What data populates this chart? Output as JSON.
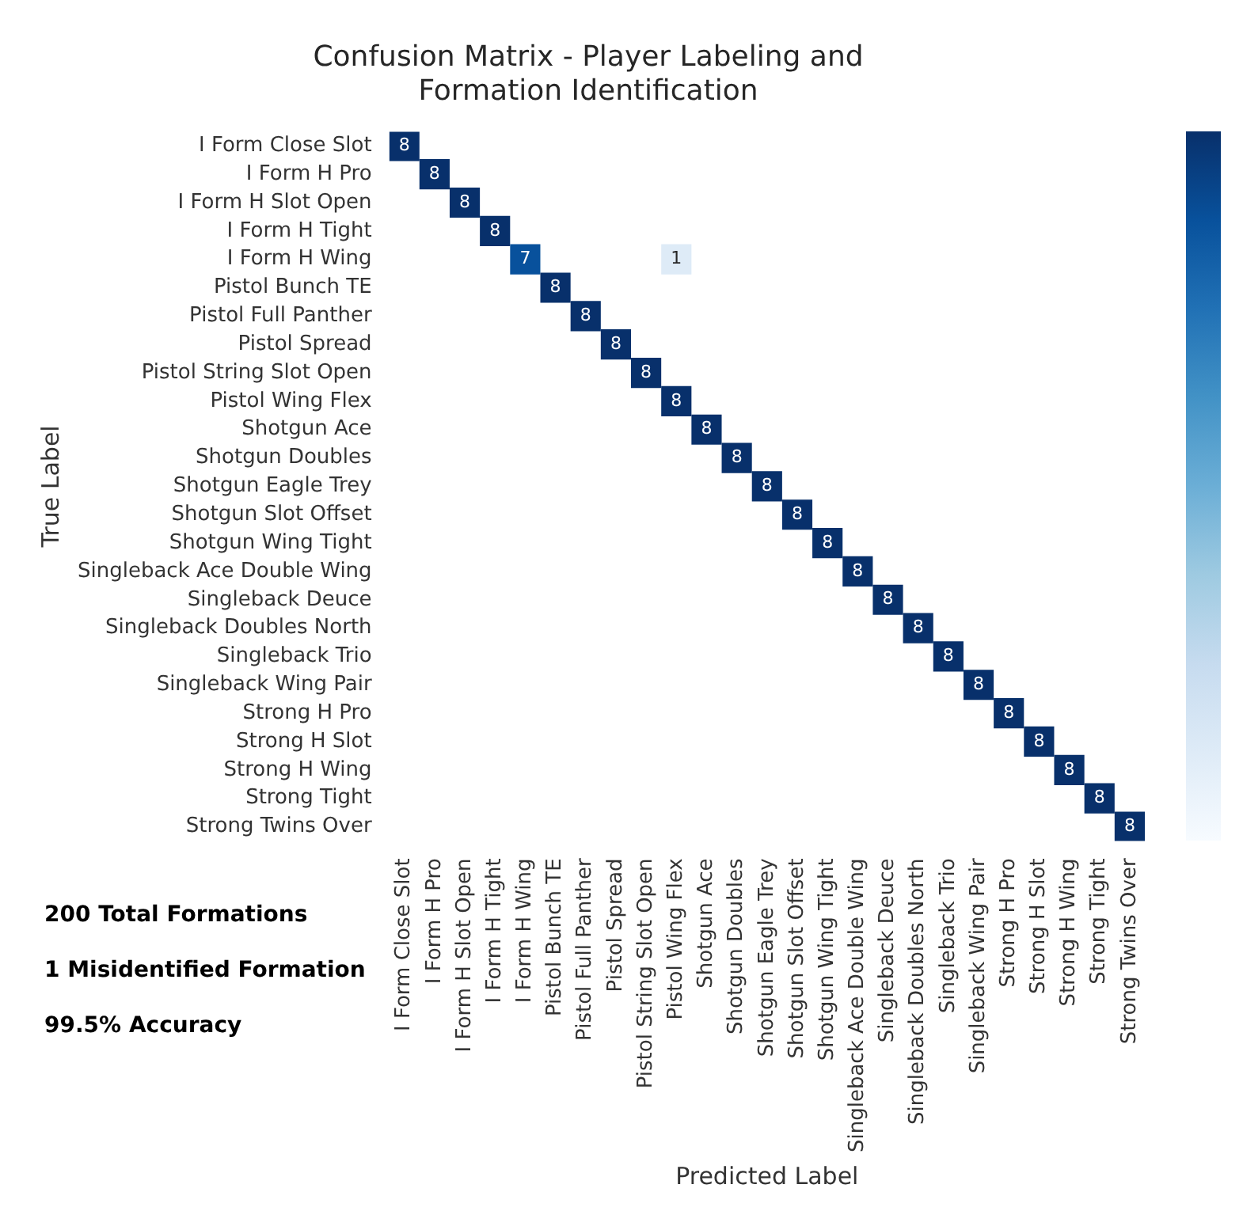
{
  "chart_data": {
    "type": "heatmap",
    "title": "Confusion Matrix - Player Labeling and Formation Identification",
    "xlabel": "Predicted Label",
    "ylabel": "True Label",
    "categories": [
      "I Form Close Slot",
      "I Form H Pro",
      "I Form H Slot Open",
      "I Form H Tight",
      "I Form H Wing",
      "Pistol Bunch TE",
      "Pistol Full Panther",
      "Pistol Spread",
      "Pistol String Slot Open",
      "Pistol Wing Flex",
      "Shotgun Ace",
      "Shotgun Doubles",
      "Shotgun Eagle Trey",
      "Shotgun Slot Offset",
      "Shotgun Wing Tight",
      "Singleback Ace Double Wing",
      "Singleback Deuce",
      "Singleback Doubles North",
      "Singleback Trio",
      "Singleback Wing Pair",
      "Strong H Pro",
      "Strong H Slot",
      "Strong H Wing",
      "Strong Tight",
      "Strong Twins Over"
    ],
    "y_categories": [
      "I Form Close Slot",
      "I Form H Pro",
      "I Form H Slot Open",
      "I Form H Tight",
      "I Form H Wing",
      "Pistol Bunch TE",
      "Pistol Full Panther",
      "Pistol Spread",
      "Pistol String Slot Open",
      "Pistol Wing Flex",
      "Shotgun Ace",
      "Shotgun Doubles",
      "Shotgun Eagle Trey",
      "Shotgun Slot Offset",
      "Shotgun Wing Tight",
      "Singleback Ace Double Wing",
      "Singleback Deuce",
      "Singleback Doubles North",
      "Singleback Trio",
      "Singleback Wing Pair",
      "Strong H Pro",
      "Strong H Slot",
      "Strong H Wing",
      "Strong Tight",
      "Strong Twins Over"
    ],
    "cells": [
      [
        8,
        null,
        null,
        null,
        null,
        null,
        null,
        null,
        null,
        null,
        null,
        null,
        null,
        null,
        null,
        null,
        null,
        null,
        null,
        null,
        null,
        null,
        null,
        null,
        null
      ],
      [
        null,
        8,
        null,
        null,
        null,
        null,
        null,
        null,
        null,
        null,
        null,
        null,
        null,
        null,
        null,
        null,
        null,
        null,
        null,
        null,
        null,
        null,
        null,
        null,
        null
      ],
      [
        null,
        null,
        8,
        null,
        null,
        null,
        null,
        null,
        null,
        null,
        null,
        null,
        null,
        null,
        null,
        null,
        null,
        null,
        null,
        null,
        null,
        null,
        null,
        null,
        null
      ],
      [
        null,
        null,
        null,
        8,
        null,
        null,
        null,
        null,
        null,
        null,
        null,
        null,
        null,
        null,
        null,
        null,
        null,
        null,
        null,
        null,
        null,
        null,
        null,
        null,
        null
      ],
      [
        null,
        null,
        null,
        null,
        7,
        null,
        null,
        null,
        null,
        1,
        null,
        null,
        null,
        null,
        null,
        null,
        null,
        null,
        null,
        null,
        null,
        null,
        null,
        null,
        null
      ],
      [
        null,
        null,
        null,
        null,
        null,
        8,
        null,
        null,
        null,
        null,
        null,
        null,
        null,
        null,
        null,
        null,
        null,
        null,
        null,
        null,
        null,
        null,
        null,
        null,
        null
      ],
      [
        null,
        null,
        null,
        null,
        null,
        null,
        8,
        null,
        null,
        null,
        null,
        null,
        null,
        null,
        null,
        null,
        null,
        null,
        null,
        null,
        null,
        null,
        null,
        null,
        null
      ],
      [
        null,
        null,
        null,
        null,
        null,
        null,
        null,
        8,
        null,
        null,
        null,
        null,
        null,
        null,
        null,
        null,
        null,
        null,
        null,
        null,
        null,
        null,
        null,
        null,
        null
      ],
      [
        null,
        null,
        null,
        null,
        null,
        null,
        null,
        null,
        8,
        null,
        null,
        null,
        null,
        null,
        null,
        null,
        null,
        null,
        null,
        null,
        null,
        null,
        null,
        null,
        null
      ],
      [
        null,
        null,
        null,
        null,
        null,
        null,
        null,
        null,
        null,
        8,
        null,
        null,
        null,
        null,
        null,
        null,
        null,
        null,
        null,
        null,
        null,
        null,
        null,
        null,
        null
      ],
      [
        null,
        null,
        null,
        null,
        null,
        null,
        null,
        null,
        null,
        null,
        8,
        null,
        null,
        null,
        null,
        null,
        null,
        null,
        null,
        null,
        null,
        null,
        null,
        null,
        null
      ],
      [
        null,
        null,
        null,
        null,
        null,
        null,
        null,
        null,
        null,
        null,
        null,
        8,
        null,
        null,
        null,
        null,
        null,
        null,
        null,
        null,
        null,
        null,
        null,
        null,
        null
      ],
      [
        null,
        null,
        null,
        null,
        null,
        null,
        null,
        null,
        null,
        null,
        null,
        null,
        8,
        null,
        null,
        null,
        null,
        null,
        null,
        null,
        null,
        null,
        null,
        null,
        null
      ],
      [
        null,
        null,
        null,
        null,
        null,
        null,
        null,
        null,
        null,
        null,
        null,
        null,
        null,
        8,
        null,
        null,
        null,
        null,
        null,
        null,
        null,
        null,
        null,
        null,
        null
      ],
      [
        null,
        null,
        null,
        null,
        null,
        null,
        null,
        null,
        null,
        null,
        null,
        null,
        null,
        null,
        8,
        null,
        null,
        null,
        null,
        null,
        null,
        null,
        null,
        null,
        null
      ],
      [
        null,
        null,
        null,
        null,
        null,
        null,
        null,
        null,
        null,
        null,
        null,
        null,
        null,
        null,
        null,
        8,
        null,
        null,
        null,
        null,
        null,
        null,
        null,
        null,
        null
      ],
      [
        null,
        null,
        null,
        null,
        null,
        null,
        null,
        null,
        null,
        null,
        null,
        null,
        null,
        null,
        null,
        null,
        8,
        null,
        null,
        null,
        null,
        null,
        null,
        null,
        null
      ],
      [
        null,
        null,
        null,
        null,
        null,
        null,
        null,
        null,
        null,
        null,
        null,
        null,
        null,
        null,
        null,
        null,
        null,
        8,
        null,
        null,
        null,
        null,
        null,
        null,
        null
      ],
      [
        null,
        null,
        null,
        null,
        null,
        null,
        null,
        null,
        null,
        null,
        null,
        null,
        null,
        null,
        null,
        null,
        null,
        null,
        8,
        null,
        null,
        null,
        null,
        null,
        null
      ],
      [
        null,
        null,
        null,
        null,
        null,
        null,
        null,
        null,
        null,
        null,
        null,
        null,
        null,
        null,
        null,
        null,
        null,
        null,
        null,
        8,
        null,
        null,
        null,
        null,
        null
      ],
      [
        null,
        null,
        null,
        null,
        null,
        null,
        null,
        null,
        null,
        null,
        null,
        null,
        null,
        null,
        null,
        null,
        null,
        null,
        null,
        null,
        8,
        null,
        null,
        null,
        null
      ],
      [
        null,
        null,
        null,
        null,
        null,
        null,
        null,
        null,
        null,
        null,
        null,
        null,
        null,
        null,
        null,
        null,
        null,
        null,
        null,
        null,
        null,
        8,
        null,
        null,
        null
      ],
      [
        null,
        null,
        null,
        null,
        null,
        null,
        null,
        null,
        null,
        null,
        null,
        null,
        null,
        null,
        null,
        null,
        null,
        null,
        null,
        null,
        null,
        null,
        8,
        null,
        null
      ],
      [
        null,
        null,
        null,
        null,
        null,
        null,
        null,
        null,
        null,
        null,
        null,
        null,
        null,
        null,
        null,
        null,
        null,
        null,
        null,
        null,
        null,
        null,
        null,
        8,
        null
      ],
      [
        null,
        null,
        null,
        null,
        null,
        null,
        null,
        null,
        null,
        null,
        null,
        null,
        null,
        null,
        null,
        null,
        null,
        null,
        null,
        null,
        null,
        null,
        null,
        null,
        8
      ]
    ],
    "data_labels": true,
    "annotations": [
      "200 Total Formations",
      "1 Misidentified Formation",
      "99.5% Accuracy"
    ]
  }
}
